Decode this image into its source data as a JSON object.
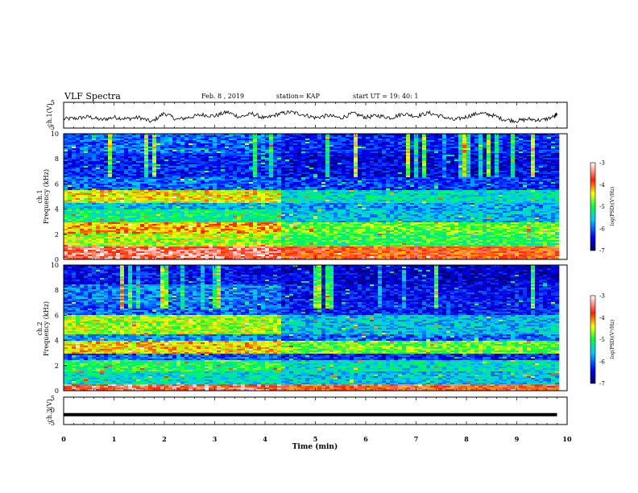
{
  "header": {
    "title": "VLF Spectra",
    "date": "Feb. 8 , 2019",
    "station": "station= KAP",
    "start": "start UT = 19: 40: 1"
  },
  "chart_data": [
    {
      "type": "line",
      "name": "ch1-voltage",
      "ylabel": "ch.1(V)",
      "ylim": [
        -5,
        5
      ],
      "yticks": [
        "5",
        "-5"
      ],
      "xlim": [
        0,
        10
      ],
      "x": [
        0,
        0.25,
        0.5,
        0.75,
        1,
        1.25,
        1.5,
        1.75,
        2,
        2.25,
        2.5,
        2.75,
        3,
        3.25,
        3.5,
        3.75,
        4,
        4.25,
        4.5,
        4.75,
        5,
        5.25,
        5.5,
        5.75,
        6,
        6.25,
        6.5,
        6.75,
        7,
        7.25,
        7.5,
        7.75,
        8,
        8.25,
        8.5,
        8.75,
        9,
        9.25,
        9.5,
        9.75,
        9.8
      ],
      "y": [
        -1.5,
        -1.2,
        -0.6,
        -1.8,
        -0.8,
        -1.4,
        -0.9,
        -2.6,
        0.8,
        -1.7,
        -0.8,
        0.2,
        -0.3,
        1.2,
        -0.7,
        0.6,
        -1.3,
        0.4,
        1.2,
        0.3,
        -1.0,
        -0.1,
        -1.1,
        0.7,
        -0.8,
        -0.2,
        -1.0,
        0.6,
        -0.4,
        0.9,
        -0.4,
        -1.9,
        -0.6,
        0.8,
        0.1,
        -1.7,
        -2.2,
        -1.5,
        -2.0,
        -0.5,
        0.6
      ]
    },
    {
      "type": "heatmap",
      "name": "ch1-spectrogram",
      "ylabel": "Frequency (kHz)",
      "channel_label": "ch.1",
      "ylim": [
        0,
        10
      ],
      "xlim": [
        0,
        10
      ],
      "yticks": [
        "0",
        "2",
        "4",
        "6",
        "8",
        "10"
      ],
      "colorbar": {
        "label": "log(PSD)(V²/Hz)",
        "ticks": [
          "-3",
          "-4",
          "-5",
          "-6",
          "-7"
        ],
        "range": [
          -7,
          -3
        ]
      },
      "bands_before": [
        [
          0,
          1.0,
          -3.5
        ],
        [
          1.0,
          2.0,
          -4.6
        ],
        [
          2.0,
          3.0,
          -4.2
        ],
        [
          3.0,
          4.0,
          -5.2
        ],
        [
          4.0,
          4.5,
          -5.6
        ],
        [
          4.5,
          5.5,
          -4.4
        ],
        [
          5.5,
          6.5,
          -6.0
        ],
        [
          6.5,
          8.5,
          -6.3
        ],
        [
          8.5,
          10,
          -6.0
        ]
      ],
      "bands_after": [
        [
          0,
          1.0,
          -3.8
        ],
        [
          1.0,
          2.0,
          -5.0
        ],
        [
          2.0,
          3.0,
          -4.8
        ],
        [
          3.0,
          4.0,
          -5.6
        ],
        [
          4.0,
          4.5,
          -5.8
        ],
        [
          4.5,
          5.5,
          -5.4
        ],
        [
          5.5,
          6.5,
          -6.2
        ],
        [
          6.5,
          8.5,
          -6.5
        ],
        [
          8.5,
          10,
          -6.3
        ]
      ],
      "transition_time": 4.3
    },
    {
      "type": "heatmap",
      "name": "ch2-spectrogram",
      "ylabel": "Frequency (kHz)",
      "channel_label": "ch.2",
      "ylim": [
        0,
        10
      ],
      "xlim": [
        0,
        10
      ],
      "yticks": [
        "0",
        "2",
        "4",
        "6",
        "8",
        "10"
      ],
      "colorbar": {
        "label": "log(PSD)(V²/Hz)",
        "ticks": [
          "-3",
          "-4",
          "-5",
          "-6",
          "-7"
        ],
        "range": [
          -7,
          -3
        ]
      },
      "bands_before": [
        [
          0,
          0.5,
          -3.6
        ],
        [
          0.5,
          1.5,
          -5.4
        ],
        [
          1.5,
          2.5,
          -5.0
        ],
        [
          2.5,
          3.0,
          -6.0
        ],
        [
          3.0,
          4.0,
          -4.3
        ],
        [
          4.0,
          4.5,
          -5.8
        ],
        [
          4.5,
          6.0,
          -4.6
        ],
        [
          6.0,
          7.0,
          -6.0
        ],
        [
          7.0,
          8.5,
          -5.9
        ],
        [
          8.5,
          10,
          -6.4
        ]
      ],
      "bands_after": [
        [
          0,
          0.5,
          -3.8
        ],
        [
          0.5,
          1.5,
          -5.6
        ],
        [
          1.5,
          2.5,
          -5.4
        ],
        [
          2.5,
          3.0,
          -6.3
        ],
        [
          3.0,
          4.0,
          -4.8
        ],
        [
          4.0,
          4.5,
          -6.0
        ],
        [
          4.5,
          6.0,
          -5.6
        ],
        [
          6.0,
          7.0,
          -6.3
        ],
        [
          7.0,
          8.5,
          -6.4
        ],
        [
          8.5,
          10,
          -6.6
        ]
      ],
      "transition_time": 4.3
    },
    {
      "type": "line",
      "name": "ch3-voltage",
      "ylabel": "ch.3(V)",
      "ylim": [
        -5,
        5
      ],
      "yticks": [
        "5",
        "0",
        "-5"
      ],
      "xlim": [
        0,
        10
      ],
      "x": [
        0,
        9.8
      ],
      "y": [
        -1.4,
        -1.4
      ]
    }
  ],
  "xaxis": {
    "label": "Time (min)",
    "ticks": [
      "0",
      "1",
      "2",
      "3",
      "4",
      "5",
      "6",
      "7",
      "8",
      "9",
      "10"
    ]
  }
}
